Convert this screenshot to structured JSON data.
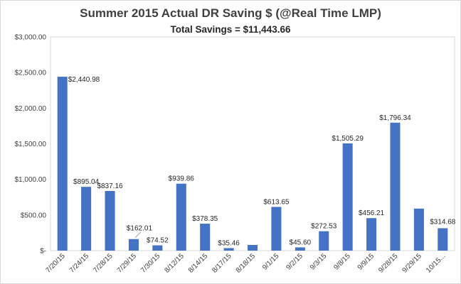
{
  "chart_data": {
    "type": "bar",
    "title": "Summer 2015 Actual DR Saving $  (@Real Time LMP)",
    "subtitle": "Total Savings = $11,443.66",
    "xlabel": "",
    "ylabel": "",
    "ylim": [
      0,
      3000
    ],
    "grid": false,
    "legend": "none",
    "bar_color": "#4472c4",
    "y_tick_values": [
      0,
      500,
      1000,
      1500,
      2000,
      2500,
      3000
    ],
    "y_tick_labels": [
      "$-",
      "$500.00",
      "$1,000.00",
      "$1,500.00",
      "$2,000.00",
      "$2,500.00",
      "$3,000.00"
    ],
    "categories": [
      "7/20/15",
      "7/24/15",
      "7/28/15",
      "7/29/15",
      "7/30/15",
      "8/12/15",
      "8/14/15",
      "8/17/15",
      "8/18/15",
      "9/1/15",
      "9/2/15",
      "9/3/15",
      "9/8/15",
      "9/9/15",
      "9/28/15",
      "9/29/15",
      "10/15..."
    ],
    "values": [
      2440.98,
      895.04,
      837.16,
      162.01,
      74.52,
      939.86,
      378.35,
      35.46,
      80,
      613.65,
      45.6,
      272.53,
      1505.29,
      456.21,
      1796.34,
      590,
      314.68
    ],
    "data_labels": [
      "$2,440.98",
      "$895.04",
      "$837.16",
      "$162.01",
      "$74.52",
      "$939.86",
      "$378.35",
      "$35.46",
      "",
      "$613.65",
      "$45.60",
      "$272.53",
      "$1,505.29",
      "$456.21",
      "$1,796.34",
      "",
      "$314.68"
    ]
  }
}
